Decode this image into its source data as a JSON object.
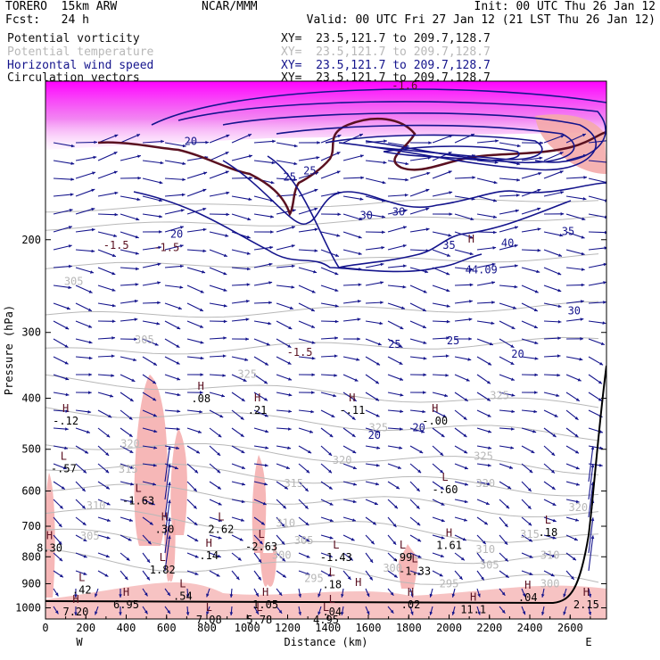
{
  "header": {
    "model": "TORERO  15km ARW",
    "org": "NCAR/MMM",
    "init": "Init: 00 UTC Thu 26 Jan 12",
    "fcst": "Fcst:   24 h",
    "valid": "Valid: 00 UTC Fri 27 Jan 12 (21 LST Thu 26 Jan 12)"
  },
  "fields": [
    {
      "name": "Potential vorticity",
      "xy": "XY=  23.5,121.7 to 209.7,128.7",
      "color": "#101010"
    },
    {
      "name": "Potential temperature",
      "xy": "XY=  23.5,121.7 to 209.7,128.7",
      "color": "#b8b8b8"
    },
    {
      "name": "Horizontal wind speed",
      "xy": "XY=  23.5,121.7 to 209.7,128.7",
      "color": "#14148c"
    },
    {
      "name": "Circulation vectors",
      "xy": "XY=  23.5,121.7 to 209.7,128.7",
      "color": "#101010"
    }
  ],
  "chart_data": {
    "type": "cross-section",
    "xlabel": "Distance (km)",
    "ylabel": "Pressure (hPa)",
    "xlim": [
      0,
      2780
    ],
    "ylim": [
      1050,
      100
    ],
    "y_scale": "log",
    "x_ticks": [
      "0",
      "200",
      "400",
      "600",
      "800",
      "1000",
      "1200",
      "1400",
      "1600",
      "1800",
      "2000",
      "2200",
      "2400",
      "2600"
    ],
    "y_ticks": [
      "200",
      "300",
      "400",
      "500",
      "600",
      "700",
      "800",
      "900",
      "1000"
    ],
    "end_labels": {
      "left": "W",
      "right": "E"
    },
    "colors": {
      "pv_fill": "#ff00ff",
      "pv_light": "#f4aaaa",
      "theta": "#b8b8b8",
      "wind": "#14148c",
      "vector": "#14148c",
      "pv_line": "#5a1020"
    },
    "theta_contours": [
      {
        "label": "325",
        "x": 1000,
        "p": 360
      },
      {
        "label": "325",
        "x": 1650,
        "p": 455
      },
      {
        "label": "325",
        "x": 2250,
        "p": 395
      },
      {
        "label": "325",
        "x": 2170,
        "p": 515
      },
      {
        "label": "320",
        "x": 420,
        "p": 488
      },
      {
        "label": "320",
        "x": 1470,
        "p": 525
      },
      {
        "label": "320",
        "x": 2180,
        "p": 580
      },
      {
        "label": "320",
        "x": 2640,
        "p": 645
      },
      {
        "label": "315",
        "x": 410,
        "p": 545
      },
      {
        "label": "315",
        "x": 1230,
        "p": 580
      },
      {
        "label": "315",
        "x": 2400,
        "p": 725
      },
      {
        "label": "310",
        "x": 250,
        "p": 640
      },
      {
        "label": "310",
        "x": 1190,
        "p": 690
      },
      {
        "label": "310",
        "x": 2180,
        "p": 775
      },
      {
        "label": "310",
        "x": 2500,
        "p": 795
      },
      {
        "label": "305",
        "x": 220,
        "p": 730
      },
      {
        "label": "305",
        "x": 1280,
        "p": 745
      },
      {
        "label": "305",
        "x": 2200,
        "p": 830
      },
      {
        "label": "300",
        "x": 1170,
        "p": 795
      },
      {
        "label": "300",
        "x": 1720,
        "p": 840
      },
      {
        "label": "300",
        "x": 2500,
        "p": 900
      },
      {
        "label": "295",
        "x": 1330,
        "p": 880
      },
      {
        "label": "295",
        "x": 2000,
        "p": 900
      },
      {
        "label": "305",
        "x": 140,
        "p": 240
      },
      {
        "label": "305",
        "x": 490,
        "p": 310
      }
    ],
    "wind_speed": [
      {
        "label": "20",
        "x": 720,
        "p": 130
      },
      {
        "label": "20",
        "x": 650,
        "p": 195
      },
      {
        "label": "25",
        "x": 1210,
        "p": 152
      },
      {
        "label": "25",
        "x": 1310,
        "p": 148
      },
      {
        "label": "30",
        "x": 1590,
        "p": 180
      },
      {
        "label": "30",
        "x": 1750,
        "p": 177
      },
      {
        "label": "35",
        "x": 2000,
        "p": 205
      },
      {
        "label": "40",
        "x": 2290,
        "p": 203
      },
      {
        "label": "35",
        "x": 2590,
        "p": 193
      },
      {
        "label": "30",
        "x": 2620,
        "p": 273
      },
      {
        "label": "25",
        "x": 1730,
        "p": 316
      },
      {
        "label": "25",
        "x": 2020,
        "p": 311
      },
      {
        "label": "20",
        "x": 2340,
        "p": 330
      },
      {
        "label": "20",
        "x": 1630,
        "p": 470
      },
      {
        "label": "20",
        "x": 1850,
        "p": 455
      },
      {
        "label": "44.09",
        "x": 2160,
        "p": 228
      }
    ],
    "pv_values": [
      {
        "label": "-1.5",
        "x": 350,
        "p": 205
      },
      {
        "label": "-1.5",
        "x": 600,
        "p": 207
      },
      {
        "label": "-1.5",
        "x": 1260,
        "p": 327
      },
      {
        "label": "-1.6",
        "x": 1780,
        "p": 102
      }
    ],
    "extrema": [
      {
        "kind": "H",
        "x": 2110,
        "p": 205,
        "value": ""
      },
      {
        "kind": "H",
        "x": 770,
        "p": 390,
        "value": ".08"
      },
      {
        "kind": "H",
        "x": 1050,
        "p": 410,
        "value": ".21"
      },
      {
        "kind": "H",
        "x": 100,
        "p": 430,
        "value": "-.12"
      },
      {
        "kind": "H",
        "x": 1520,
        "p": 410,
        "value": "-.11"
      },
      {
        "kind": "H",
        "x": 1930,
        "p": 430,
        "value": "-.00"
      },
      {
        "kind": "L",
        "x": 90,
        "p": 530,
        "value": "-.57"
      },
      {
        "kind": "L",
        "x": 1980,
        "p": 580,
        "value": "-.60"
      },
      {
        "kind": "L",
        "x": 460,
        "p": 610,
        "value": "-1.63"
      },
      {
        "kind": "H",
        "x": 590,
        "p": 690,
        "value": ".30"
      },
      {
        "kind": "L",
        "x": 870,
        "p": 690,
        "value": "2.62"
      },
      {
        "kind": "L",
        "x": 1070,
        "p": 745,
        "value": "-2.63"
      },
      {
        "kind": "L",
        "x": 1440,
        "p": 780,
        "value": "-1.43"
      },
      {
        "kind": "L",
        "x": 1770,
        "p": 780,
        "value": ".99"
      },
      {
        "kind": "L",
        "x": 1830,
        "p": 830,
        "value": "-1.33"
      },
      {
        "kind": "H",
        "x": 2000,
        "p": 740,
        "value": "1.61"
      },
      {
        "kind": "L",
        "x": 2490,
        "p": 700,
        "value": ".18"
      },
      {
        "kind": "H",
        "x": 20,
        "p": 750,
        "value": "8.30"
      },
      {
        "kind": "H",
        "x": 810,
        "p": 775,
        "value": ".14"
      },
      {
        "kind": "L",
        "x": 580,
        "p": 825,
        "value": "1.82"
      },
      {
        "kind": "L",
        "x": 180,
        "p": 900,
        "value": ".42"
      },
      {
        "kind": "H",
        "x": 400,
        "p": 960,
        "value": "6.95"
      },
      {
        "kind": "L",
        "x": 680,
        "p": 925,
        "value": ".54"
      },
      {
        "kind": "H",
        "x": 1090,
        "p": 960,
        "value": "1.05"
      },
      {
        "kind": "L",
        "x": 1420,
        "p": 880,
        "value": ".18"
      },
      {
        "kind": "L",
        "x": 1420,
        "p": 990,
        "value": ".04"
      },
      {
        "kind": "H",
        "x": 1550,
        "p": 920,
        "value": ""
      },
      {
        "kind": "H",
        "x": 1810,
        "p": 960,
        "value": ".02"
      },
      {
        "kind": "H",
        "x": 2120,
        "p": 980,
        "value": "11.1"
      },
      {
        "kind": "H",
        "x": 2390,
        "p": 930,
        "value": ".04"
      },
      {
        "kind": "H",
        "x": 2680,
        "p": 960,
        "value": "2.15"
      },
      {
        "kind": "H",
        "x": 150,
        "p": 990,
        "value": "7.20"
      },
      {
        "kind": "L",
        "x": 810,
        "p": 1025,
        "value": "7.08"
      },
      {
        "kind": "L",
        "x": 1060,
        "p": 1025,
        "value": "5.78"
      },
      {
        "kind": "L",
        "x": 1390,
        "p": 1025,
        "value": "4.95"
      }
    ]
  }
}
